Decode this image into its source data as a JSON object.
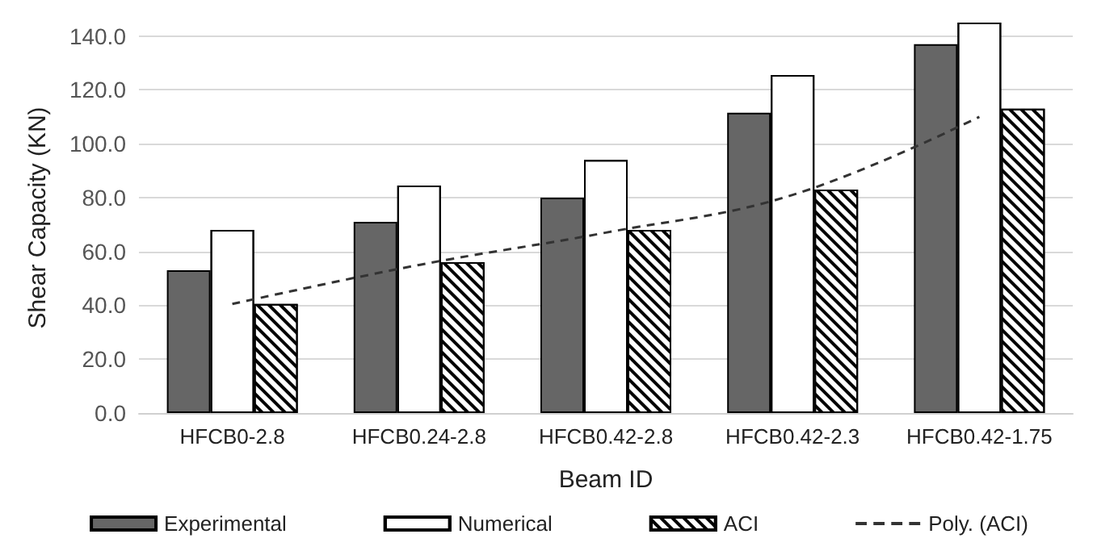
{
  "chart_data": {
    "type": "bar",
    "xlabel": "Beam ID",
    "ylabel": "Shear Capacity (KN)",
    "categories": [
      "HFCB0-2.8",
      "HFCB0.24-2.8",
      "HFCB0.42-2.8",
      "HFCB0.42-2.3",
      "HFCB0.42-1.75"
    ],
    "series": [
      {
        "name": "Experimental",
        "color": "#666666",
        "values": [
          53,
          71,
          80,
          111.5,
          137
        ]
      },
      {
        "name": "Numerical",
        "color": "#ffffff",
        "values": [
          68,
          84.5,
          94,
          125.5,
          145
        ]
      },
      {
        "name": "ACI",
        "color": "#ffffff",
        "values": [
          40.5,
          56,
          68,
          83,
          113
        ]
      },
      {
        "name": "Poly. (ACI)",
        "type": "line",
        "color": "#333333",
        "line_style": "dashed",
        "marker": "none",
        "values": [
          40.5,
          55,
          67,
          81,
          110
        ]
      }
    ],
    "ylim": [
      0,
      145
    ],
    "yticks": [
      {
        "value": 0,
        "label": "0.0"
      },
      {
        "value": 20,
        "label": "20.0"
      },
      {
        "value": 40,
        "label": "40.0"
      },
      {
        "value": 60,
        "label": "60.0"
      },
      {
        "value": 80,
        "label": "80.0"
      },
      {
        "value": 100,
        "label": "100.0"
      },
      {
        "value": 120,
        "label": "120.0"
      },
      {
        "value": 140,
        "label": "140.0"
      }
    ],
    "grid": "y",
    "legend": "bottom"
  }
}
